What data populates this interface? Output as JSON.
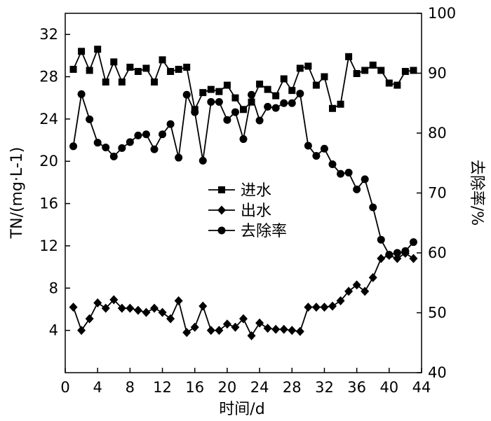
{
  "chart_data": {
    "type": "line",
    "xlabel": "时间/d",
    "ylabel_left": "TN/(mg·L-1)",
    "ylabel_right": "去除率/%",
    "xlim": [
      0,
      44
    ],
    "ylim_left": [
      0,
      34
    ],
    "ylim_right": [
      40,
      100
    ],
    "x_ticks": [
      0,
      4,
      8,
      12,
      16,
      20,
      24,
      28,
      32,
      36,
      40,
      44
    ],
    "y_left_ticks": [
      4,
      8,
      12,
      16,
      20,
      24,
      28,
      32
    ],
    "y_right_ticks": [
      40,
      50,
      60,
      70,
      80,
      90,
      100
    ],
    "grid": false,
    "legend_position": "center",
    "x": [
      1,
      2,
      3,
      4,
      5,
      6,
      7,
      8,
      9,
      10,
      11,
      12,
      13,
      14,
      15,
      16,
      17,
      18,
      19,
      20,
      21,
      22,
      23,
      24,
      25,
      26,
      27,
      28,
      29,
      30,
      31,
      32,
      33,
      34,
      35,
      36,
      37,
      38,
      39,
      40,
      41,
      42,
      43
    ],
    "series": [
      {
        "name": "进水",
        "axis": "left",
        "marker": "square",
        "values": [
          28.7,
          30.4,
          28.6,
          30.6,
          27.5,
          29.4,
          27.5,
          28.9,
          28.5,
          28.8,
          27.5,
          29.6,
          28.5,
          28.7,
          28.9,
          24.9,
          26.5,
          26.8,
          26.6,
          27.2,
          26.0,
          24.9,
          25.6,
          27.3,
          26.8,
          26.2,
          27.8,
          26.7,
          28.8,
          29.0,
          27.2,
          28.0,
          25.0,
          25.4,
          29.9,
          28.3,
          28.6,
          29.1,
          28.6,
          27.4,
          27.2,
          28.5,
          28.6
        ]
      },
      {
        "name": "出水",
        "axis": "left",
        "marker": "diamond",
        "values": [
          6.2,
          4.0,
          5.1,
          6.6,
          6.1,
          6.9,
          6.1,
          6.1,
          5.9,
          5.7,
          6.1,
          5.7,
          5.1,
          6.8,
          3.8,
          4.3,
          6.3,
          4.0,
          4.0,
          4.6,
          4.3,
          5.1,
          3.5,
          4.7,
          4.2,
          4.1,
          4.1,
          4.0,
          3.9,
          6.2,
          6.2,
          6.2,
          6.3,
          6.8,
          7.7,
          8.3,
          7.7,
          9.0,
          10.8,
          11.1,
          10.8,
          11.3,
          10.8
        ]
      },
      {
        "name": "去除率",
        "axis": "right",
        "marker": "circle",
        "values": [
          77.8,
          86.5,
          82.3,
          78.4,
          77.6,
          76.1,
          77.5,
          78.5,
          79.6,
          79.8,
          77.3,
          79.8,
          81.5,
          75.9,
          86.4,
          83.5,
          75.4,
          85.2,
          85.2,
          82.2,
          83.5,
          79.0,
          86.4,
          82.1,
          84.4,
          84.2,
          85.0,
          85.0,
          86.6,
          77.9,
          76.2,
          77.4,
          74.8,
          73.2,
          73.4,
          70.6,
          72.3,
          67.6,
          62.2,
          59.7,
          60.0,
          60.3,
          61.8
        ]
      }
    ]
  }
}
